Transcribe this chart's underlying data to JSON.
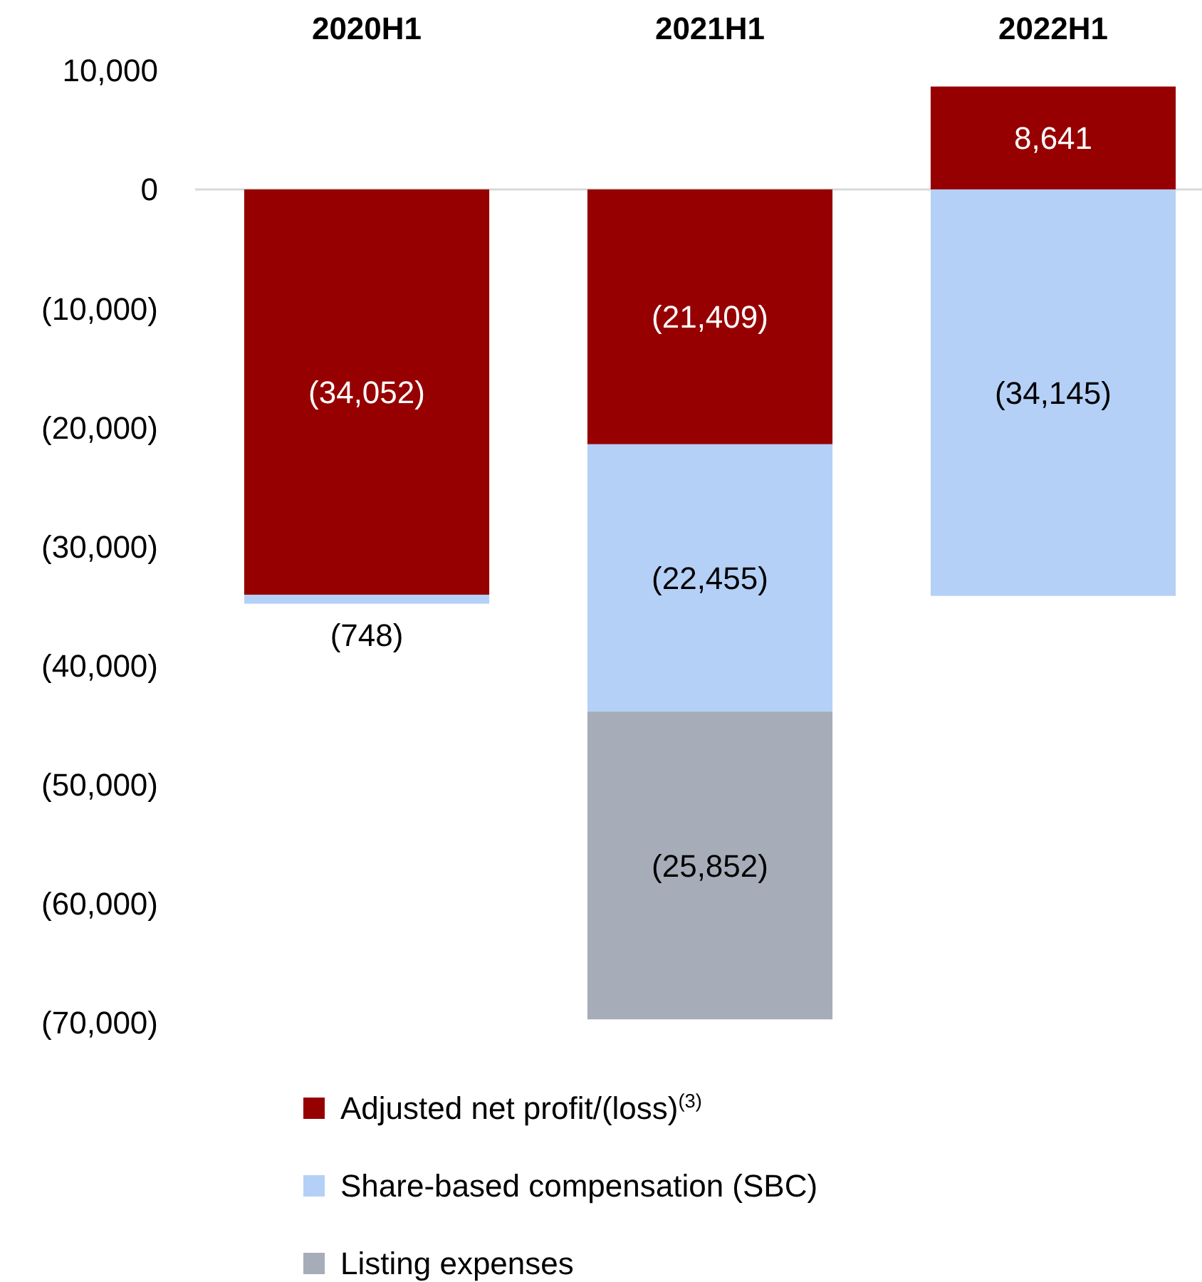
{
  "chart_data": {
    "type": "bar",
    "stacked": true,
    "categories": [
      "2020H1",
      "2021H1",
      "2022H1"
    ],
    "series": [
      {
        "name": "Adjusted net profit/(loss)$^{(3)}$",
        "color": "#960000",
        "values": [
          -34052,
          -21409,
          8641
        ],
        "value_labels": [
          "(34,052)",
          "(21,409)",
          "8,641"
        ]
      },
      {
        "name": "Share-based compensation (SBC)",
        "color": "#b4d0f7",
        "values": [
          -748,
          -22455,
          -34145
        ],
        "value_labels": [
          "(748)",
          "(22,455)",
          "(34,145)"
        ]
      },
      {
        "name": "Listing expenses",
        "color": "#a6adb8",
        "values": [
          null,
          -25852,
          null
        ],
        "value_labels": [
          null,
          "(25,852)",
          null
        ]
      }
    ],
    "ylim": [
      -70000,
      10000
    ],
    "yticks": [
      {
        "value": 10000,
        "label": "10,000"
      },
      0,
      {
        "value": -10000,
        "label": "(10,000)"
      },
      {
        "value": -20000,
        "label": "(20,000)"
      },
      {
        "value": -30000,
        "label": "(30,000)"
      },
      {
        "value": -40000,
        "label": "(40,000)"
      },
      {
        "value": -50000,
        "label": "(50,000)"
      },
      {
        "value": -60000,
        "label": "(60,000)"
      },
      {
        "value": -70000,
        "label": "(70,000)"
      }
    ],
    "legend": "bottom"
  }
}
